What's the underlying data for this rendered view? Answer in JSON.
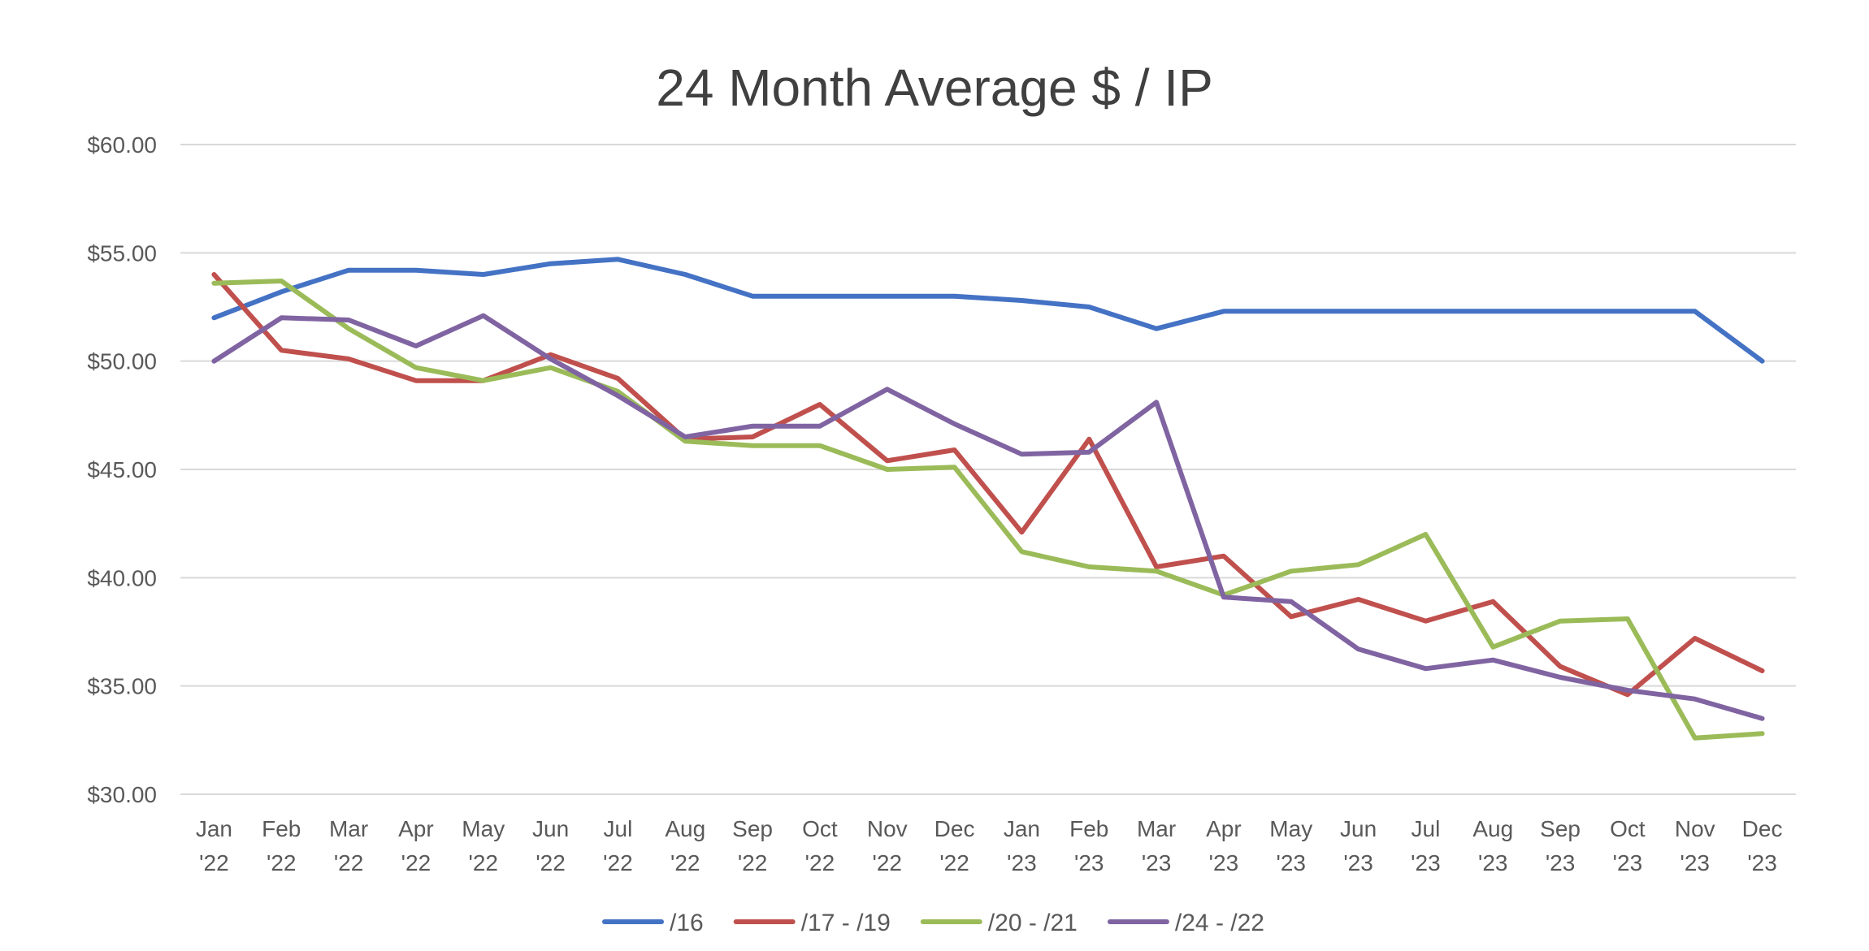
{
  "chart_data": {
    "type": "line",
    "title": "24 Month Average $ / IP",
    "xlabel": "",
    "ylabel": "",
    "ylim": [
      30,
      60
    ],
    "y_ticks": [
      {
        "value": 60,
        "label": "$60.00"
      },
      {
        "value": 55,
        "label": "$55.00"
      },
      {
        "value": 50,
        "label": "$50.00"
      },
      {
        "value": 45,
        "label": "$45.00"
      },
      {
        "value": 40,
        "label": "$40.00"
      },
      {
        "value": 35,
        "label": "$35.00"
      },
      {
        "value": 30,
        "label": "$30.00"
      }
    ],
    "grid": true,
    "legend_position": "bottom",
    "categories": [
      {
        "month": "Jan",
        "year": "'22"
      },
      {
        "month": "Feb",
        "year": "'22"
      },
      {
        "month": "Mar",
        "year": "'22"
      },
      {
        "month": "Apr",
        "year": "'22"
      },
      {
        "month": "May",
        "year": "'22"
      },
      {
        "month": "Jun",
        "year": "'22"
      },
      {
        "month": "Jul",
        "year": "'22"
      },
      {
        "month": "Aug",
        "year": "'22"
      },
      {
        "month": "Sep",
        "year": "'22"
      },
      {
        "month": "Oct",
        "year": "'22"
      },
      {
        "month": "Nov",
        "year": "'22"
      },
      {
        "month": "Dec",
        "year": "'22"
      },
      {
        "month": "Jan",
        "year": "'23"
      },
      {
        "month": "Feb",
        "year": "'23"
      },
      {
        "month": "Mar",
        "year": "'23"
      },
      {
        "month": "Apr",
        "year": "'23"
      },
      {
        "month": "May",
        "year": "'23"
      },
      {
        "month": "Jun",
        "year": "'23"
      },
      {
        "month": "Jul",
        "year": "'23"
      },
      {
        "month": "Aug",
        "year": "'23"
      },
      {
        "month": "Sep",
        "year": "'23"
      },
      {
        "month": "Oct",
        "year": "'23"
      },
      {
        "month": "Nov",
        "year": "'23"
      },
      {
        "month": "Dec",
        "year": "'23"
      }
    ],
    "series": [
      {
        "name": "/16",
        "color": "#4472c4",
        "values": [
          52.0,
          53.2,
          54.2,
          54.2,
          54.0,
          54.5,
          54.7,
          54.0,
          53.0,
          53.0,
          53.0,
          53.0,
          52.8,
          52.5,
          51.5,
          52.3,
          52.3,
          52.3,
          52.3,
          52.3,
          52.3,
          52.3,
          52.3,
          50.0
        ]
      },
      {
        "name": "/17 - /19",
        "color": "#c0504d",
        "values": [
          54.0,
          50.5,
          50.1,
          49.1,
          49.1,
          50.3,
          49.2,
          46.4,
          46.5,
          48.0,
          45.4,
          45.9,
          42.1,
          46.4,
          40.5,
          41.0,
          38.2,
          39.0,
          38.0,
          38.9,
          35.9,
          34.6,
          37.2,
          35.7
        ]
      },
      {
        "name": "/20 - /21",
        "color": "#9bbb59",
        "values": [
          53.6,
          53.7,
          51.5,
          49.7,
          49.1,
          49.7,
          48.6,
          46.3,
          46.1,
          46.1,
          45.0,
          45.1,
          41.2,
          40.5,
          40.3,
          39.2,
          40.3,
          40.6,
          42.0,
          36.8,
          38.0,
          38.1,
          32.6,
          32.8
        ]
      },
      {
        "name": "/24 - /22",
        "color": "#8064a2",
        "values": [
          50.0,
          52.0,
          51.9,
          50.7,
          52.1,
          50.1,
          48.4,
          46.5,
          47.0,
          47.0,
          48.7,
          47.1,
          45.7,
          45.8,
          48.1,
          39.1,
          38.9,
          36.7,
          35.8,
          36.2,
          35.4,
          34.8,
          34.4,
          33.5
        ]
      }
    ]
  }
}
